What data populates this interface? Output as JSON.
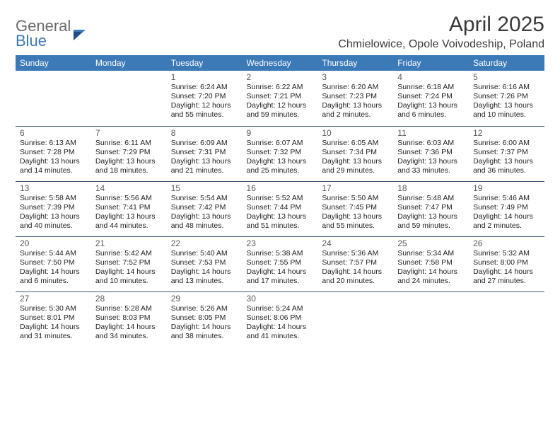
{
  "brand": {
    "general": "General",
    "blue": "Blue"
  },
  "title": {
    "month": "April 2025",
    "location": "Chmielowice, Opole Voivodeship, Poland"
  },
  "colors": {
    "header_bg": "#3b79b7",
    "header_text": "#ffffff",
    "rule": "#3a5a7a",
    "text": "#222222",
    "title_text": "#3a3a3a"
  },
  "day_names": [
    "Sunday",
    "Monday",
    "Tuesday",
    "Wednesday",
    "Thursday",
    "Friday",
    "Saturday"
  ],
  "weeks": [
    [
      null,
      null,
      {
        "n": "1",
        "sunrise": "Sunrise: 6:24 AM",
        "sunset": "Sunset: 7:20 PM",
        "day1": "Daylight: 12 hours",
        "day2": "and 55 minutes."
      },
      {
        "n": "2",
        "sunrise": "Sunrise: 6:22 AM",
        "sunset": "Sunset: 7:21 PM",
        "day1": "Daylight: 12 hours",
        "day2": "and 59 minutes."
      },
      {
        "n": "3",
        "sunrise": "Sunrise: 6:20 AM",
        "sunset": "Sunset: 7:23 PM",
        "day1": "Daylight: 13 hours",
        "day2": "and 2 minutes."
      },
      {
        "n": "4",
        "sunrise": "Sunrise: 6:18 AM",
        "sunset": "Sunset: 7:24 PM",
        "day1": "Daylight: 13 hours",
        "day2": "and 6 minutes."
      },
      {
        "n": "5",
        "sunrise": "Sunrise: 6:16 AM",
        "sunset": "Sunset: 7:26 PM",
        "day1": "Daylight: 13 hours",
        "day2": "and 10 minutes."
      }
    ],
    [
      {
        "n": "6",
        "sunrise": "Sunrise: 6:13 AM",
        "sunset": "Sunset: 7:28 PM",
        "day1": "Daylight: 13 hours",
        "day2": "and 14 minutes."
      },
      {
        "n": "7",
        "sunrise": "Sunrise: 6:11 AM",
        "sunset": "Sunset: 7:29 PM",
        "day1": "Daylight: 13 hours",
        "day2": "and 18 minutes."
      },
      {
        "n": "8",
        "sunrise": "Sunrise: 6:09 AM",
        "sunset": "Sunset: 7:31 PM",
        "day1": "Daylight: 13 hours",
        "day2": "and 21 minutes."
      },
      {
        "n": "9",
        "sunrise": "Sunrise: 6:07 AM",
        "sunset": "Sunset: 7:32 PM",
        "day1": "Daylight: 13 hours",
        "day2": "and 25 minutes."
      },
      {
        "n": "10",
        "sunrise": "Sunrise: 6:05 AM",
        "sunset": "Sunset: 7:34 PM",
        "day1": "Daylight: 13 hours",
        "day2": "and 29 minutes."
      },
      {
        "n": "11",
        "sunrise": "Sunrise: 6:03 AM",
        "sunset": "Sunset: 7:36 PM",
        "day1": "Daylight: 13 hours",
        "day2": "and 33 minutes."
      },
      {
        "n": "12",
        "sunrise": "Sunrise: 6:00 AM",
        "sunset": "Sunset: 7:37 PM",
        "day1": "Daylight: 13 hours",
        "day2": "and 36 minutes."
      }
    ],
    [
      {
        "n": "13",
        "sunrise": "Sunrise: 5:58 AM",
        "sunset": "Sunset: 7:39 PM",
        "day1": "Daylight: 13 hours",
        "day2": "and 40 minutes."
      },
      {
        "n": "14",
        "sunrise": "Sunrise: 5:56 AM",
        "sunset": "Sunset: 7:41 PM",
        "day1": "Daylight: 13 hours",
        "day2": "and 44 minutes."
      },
      {
        "n": "15",
        "sunrise": "Sunrise: 5:54 AM",
        "sunset": "Sunset: 7:42 PM",
        "day1": "Daylight: 13 hours",
        "day2": "and 48 minutes."
      },
      {
        "n": "16",
        "sunrise": "Sunrise: 5:52 AM",
        "sunset": "Sunset: 7:44 PM",
        "day1": "Daylight: 13 hours",
        "day2": "and 51 minutes."
      },
      {
        "n": "17",
        "sunrise": "Sunrise: 5:50 AM",
        "sunset": "Sunset: 7:45 PM",
        "day1": "Daylight: 13 hours",
        "day2": "and 55 minutes."
      },
      {
        "n": "18",
        "sunrise": "Sunrise: 5:48 AM",
        "sunset": "Sunset: 7:47 PM",
        "day1": "Daylight: 13 hours",
        "day2": "and 59 minutes."
      },
      {
        "n": "19",
        "sunrise": "Sunrise: 5:46 AM",
        "sunset": "Sunset: 7:49 PM",
        "day1": "Daylight: 14 hours",
        "day2": "and 2 minutes."
      }
    ],
    [
      {
        "n": "20",
        "sunrise": "Sunrise: 5:44 AM",
        "sunset": "Sunset: 7:50 PM",
        "day1": "Daylight: 14 hours",
        "day2": "and 6 minutes."
      },
      {
        "n": "21",
        "sunrise": "Sunrise: 5:42 AM",
        "sunset": "Sunset: 7:52 PM",
        "day1": "Daylight: 14 hours",
        "day2": "and 10 minutes."
      },
      {
        "n": "22",
        "sunrise": "Sunrise: 5:40 AM",
        "sunset": "Sunset: 7:53 PM",
        "day1": "Daylight: 14 hours",
        "day2": "and 13 minutes."
      },
      {
        "n": "23",
        "sunrise": "Sunrise: 5:38 AM",
        "sunset": "Sunset: 7:55 PM",
        "day1": "Daylight: 14 hours",
        "day2": "and 17 minutes."
      },
      {
        "n": "24",
        "sunrise": "Sunrise: 5:36 AM",
        "sunset": "Sunset: 7:57 PM",
        "day1": "Daylight: 14 hours",
        "day2": "and 20 minutes."
      },
      {
        "n": "25",
        "sunrise": "Sunrise: 5:34 AM",
        "sunset": "Sunset: 7:58 PM",
        "day1": "Daylight: 14 hours",
        "day2": "and 24 minutes."
      },
      {
        "n": "26",
        "sunrise": "Sunrise: 5:32 AM",
        "sunset": "Sunset: 8:00 PM",
        "day1": "Daylight: 14 hours",
        "day2": "and 27 minutes."
      }
    ],
    [
      {
        "n": "27",
        "sunrise": "Sunrise: 5:30 AM",
        "sunset": "Sunset: 8:01 PM",
        "day1": "Daylight: 14 hours",
        "day2": "and 31 minutes."
      },
      {
        "n": "28",
        "sunrise": "Sunrise: 5:28 AM",
        "sunset": "Sunset: 8:03 PM",
        "day1": "Daylight: 14 hours",
        "day2": "and 34 minutes."
      },
      {
        "n": "29",
        "sunrise": "Sunrise: 5:26 AM",
        "sunset": "Sunset: 8:05 PM",
        "day1": "Daylight: 14 hours",
        "day2": "and 38 minutes."
      },
      {
        "n": "30",
        "sunrise": "Sunrise: 5:24 AM",
        "sunset": "Sunset: 8:06 PM",
        "day1": "Daylight: 14 hours",
        "day2": "and 41 minutes."
      },
      null,
      null,
      null
    ]
  ]
}
